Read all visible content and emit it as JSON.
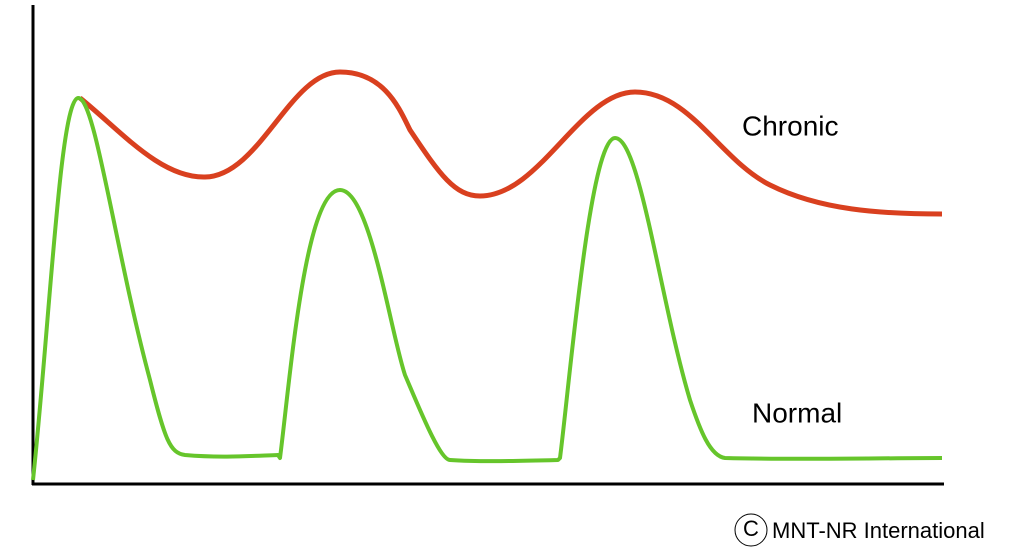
{
  "labels": {
    "chronic": "Chronic",
    "normal": "Normal"
  },
  "copyright": {
    "symbol": "C",
    "text": "MNT-NR International"
  }
}
